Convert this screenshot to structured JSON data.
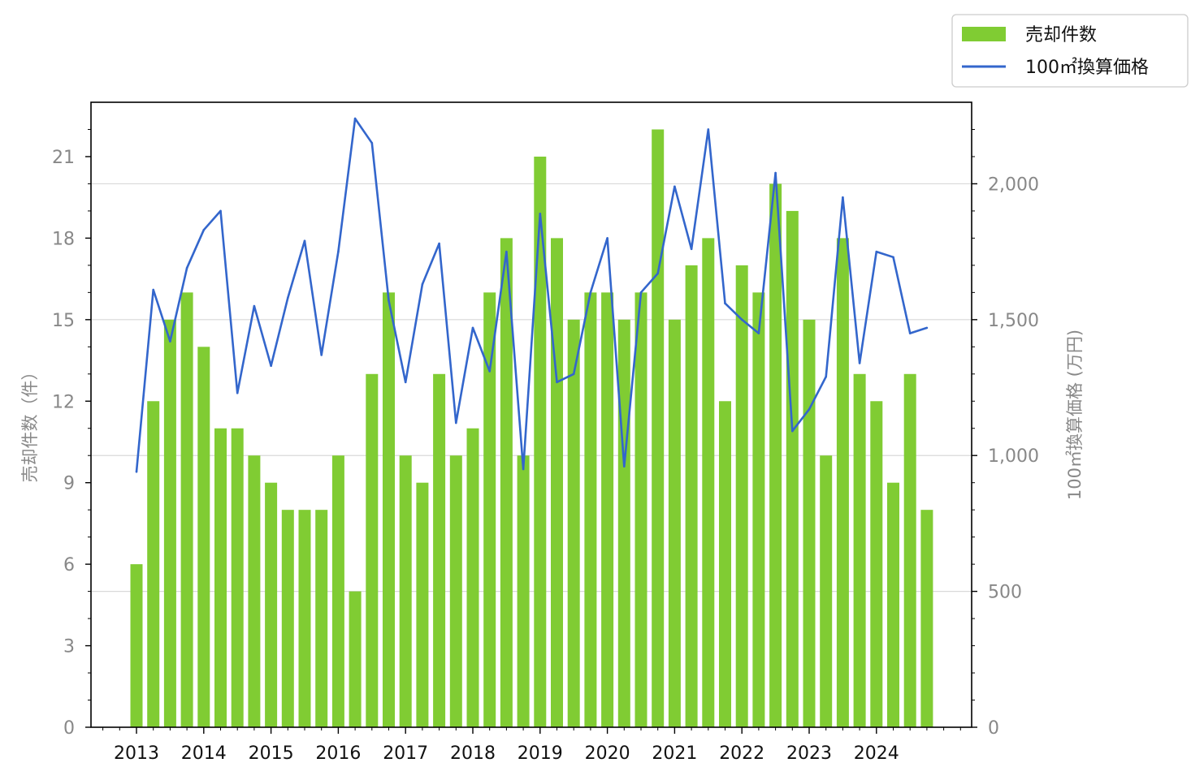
{
  "chart_data": {
    "type": "bar+line",
    "x_ticks": [
      "2013",
      "2014",
      "2015",
      "2016",
      "2017",
      "2018",
      "2019",
      "2020",
      "2021",
      "2022",
      "2023",
      "2024"
    ],
    "series": [
      {
        "name": "売却件数",
        "type": "bar",
        "axis": "left",
        "color": "#80cc33",
        "values": [
          6,
          12,
          15,
          16,
          14,
          11,
          11,
          10,
          9,
          8,
          8,
          8,
          10,
          5,
          13,
          16,
          10,
          9,
          13,
          10,
          11,
          16,
          18,
          10,
          21,
          18,
          15,
          16,
          16,
          15,
          16,
          22,
          15,
          17,
          18,
          12,
          17,
          16,
          20,
          19,
          15,
          10,
          18,
          13,
          12,
          9,
          13,
          8
        ]
      },
      {
        "name": "100㎡換算価格",
        "type": "line",
        "axis": "right",
        "color": "#3366cc",
        "values": [
          940,
          1610,
          1420,
          1690,
          1830,
          1900,
          1230,
          1550,
          1330,
          1580,
          1790,
          1370,
          1750,
          2240,
          2150,
          1570,
          1270,
          1630,
          1780,
          1120,
          1470,
          1310,
          1750,
          950,
          1890,
          1270,
          1300,
          1600,
          1800,
          960,
          1600,
          1670,
          1990,
          1760,
          2200,
          1560,
          1500,
          1450,
          2040,
          1090,
          1170,
          1290,
          1950,
          1340,
          1750,
          1730,
          1450,
          1470
        ]
      }
    ],
    "start_year": 2013,
    "periods_per_year": 4,
    "y_left": {
      "label": "売却件数（件）",
      "lim": [
        0,
        23
      ],
      "ticks": [
        0,
        3,
        6,
        9,
        12,
        15,
        18,
        21
      ]
    },
    "y_right": {
      "label": "100㎡換算価格 (万円)",
      "lim": [
        0,
        2300
      ],
      "ticks": [
        0,
        500,
        1000,
        1500,
        2000
      ],
      "tick_labels": [
        "0",
        "500",
        "1,000",
        "1,500",
        "2,000"
      ]
    },
    "grid": "horizontal, right axis",
    "legend_position": "top-right, outside"
  }
}
